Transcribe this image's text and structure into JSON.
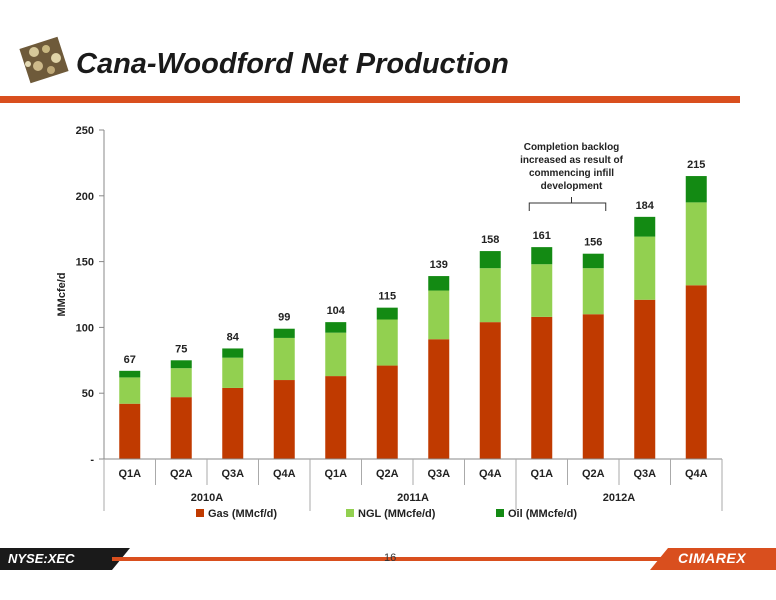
{
  "page": {
    "title": "Cana-Woodford Net Production",
    "ticker": "NYSE:XEC",
    "page_number": "16",
    "brand": "CIMAREX"
  },
  "colors": {
    "gas": "#c03a00",
    "ngl": "#92d050",
    "oil": "#138a13",
    "accent": "#d94f1e"
  },
  "chart_data": {
    "type": "bar",
    "stacked": true,
    "ylabel": "MMcfe/d",
    "ylim": [
      0,
      250
    ],
    "yticks": [
      0,
      50,
      100,
      150,
      200,
      250
    ],
    "ytick_labels": [
      "-",
      "50",
      "100",
      "150",
      "200",
      "250"
    ],
    "categories": [
      "Q1A",
      "Q2A",
      "Q3A",
      "Q4A",
      "Q1A",
      "Q2A",
      "Q3A",
      "Q4A",
      "Q1A",
      "Q2A",
      "Q3A",
      "Q4A"
    ],
    "groups": [
      {
        "label": "2010A",
        "span": 4
      },
      {
        "label": "2011A",
        "span": 4
      },
      {
        "label": "2012A",
        "span": 4
      }
    ],
    "series": [
      {
        "name": "Gas (MMcf/d)",
        "color": "#c03a00",
        "values": [
          42,
          47,
          54,
          60,
          63,
          71,
          91,
          104,
          108,
          110,
          121,
          132
        ]
      },
      {
        "name": "NGL (MMcfe/d)",
        "color": "#92d050",
        "values": [
          20,
          22,
          23,
          32,
          33,
          35,
          37,
          41,
          40,
          35,
          48,
          63
        ]
      },
      {
        "name": "Oil (MMcfe/d)",
        "color": "#138a13",
        "values": [
          5,
          6,
          7,
          7,
          8,
          9,
          11,
          13,
          13,
          11,
          15,
          20
        ]
      }
    ],
    "totals": [
      67,
      75,
      84,
      99,
      104,
      115,
      139,
      158,
      161,
      156,
      184,
      215
    ],
    "annotation": {
      "lines": [
        "Completion backlog",
        "increased  as result of",
        "commencing  infill",
        "development"
      ],
      "from_index": 8,
      "to_index": 9
    },
    "legend_position": "bottom",
    "grid": false
  }
}
